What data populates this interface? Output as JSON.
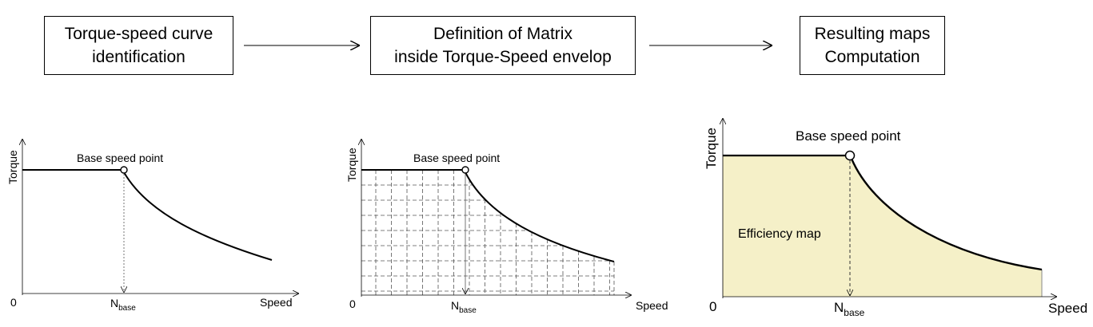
{
  "steps": [
    {
      "line1": "Torque-speed curve",
      "line2": "identification"
    },
    {
      "line1": "Definition of Matrix",
      "line2": "inside Torque-Speed envelop"
    },
    {
      "line1": "Resulting maps",
      "line2": "Computation"
    }
  ],
  "plots": [
    {
      "ylabel": "Torque",
      "xlabel": "Speed",
      "origin": "0",
      "point_label": "Base speed point",
      "nbase_main": "N",
      "nbase_sub": "base"
    },
    {
      "ylabel": "Torque",
      "xlabel": "Speed",
      "origin": "0",
      "point_label": "Base speed point",
      "nbase_main": "N",
      "nbase_sub": "base"
    },
    {
      "ylabel": "Torque",
      "xlabel": "Speed",
      "origin": "0",
      "point_label": "Base speed point",
      "nbase_main": "N",
      "nbase_sub": "base",
      "region_label": "Efficiency map"
    }
  ],
  "colors": {
    "map_fill": "#f5f0c8",
    "line": "#000000",
    "grid": "#555555"
  }
}
